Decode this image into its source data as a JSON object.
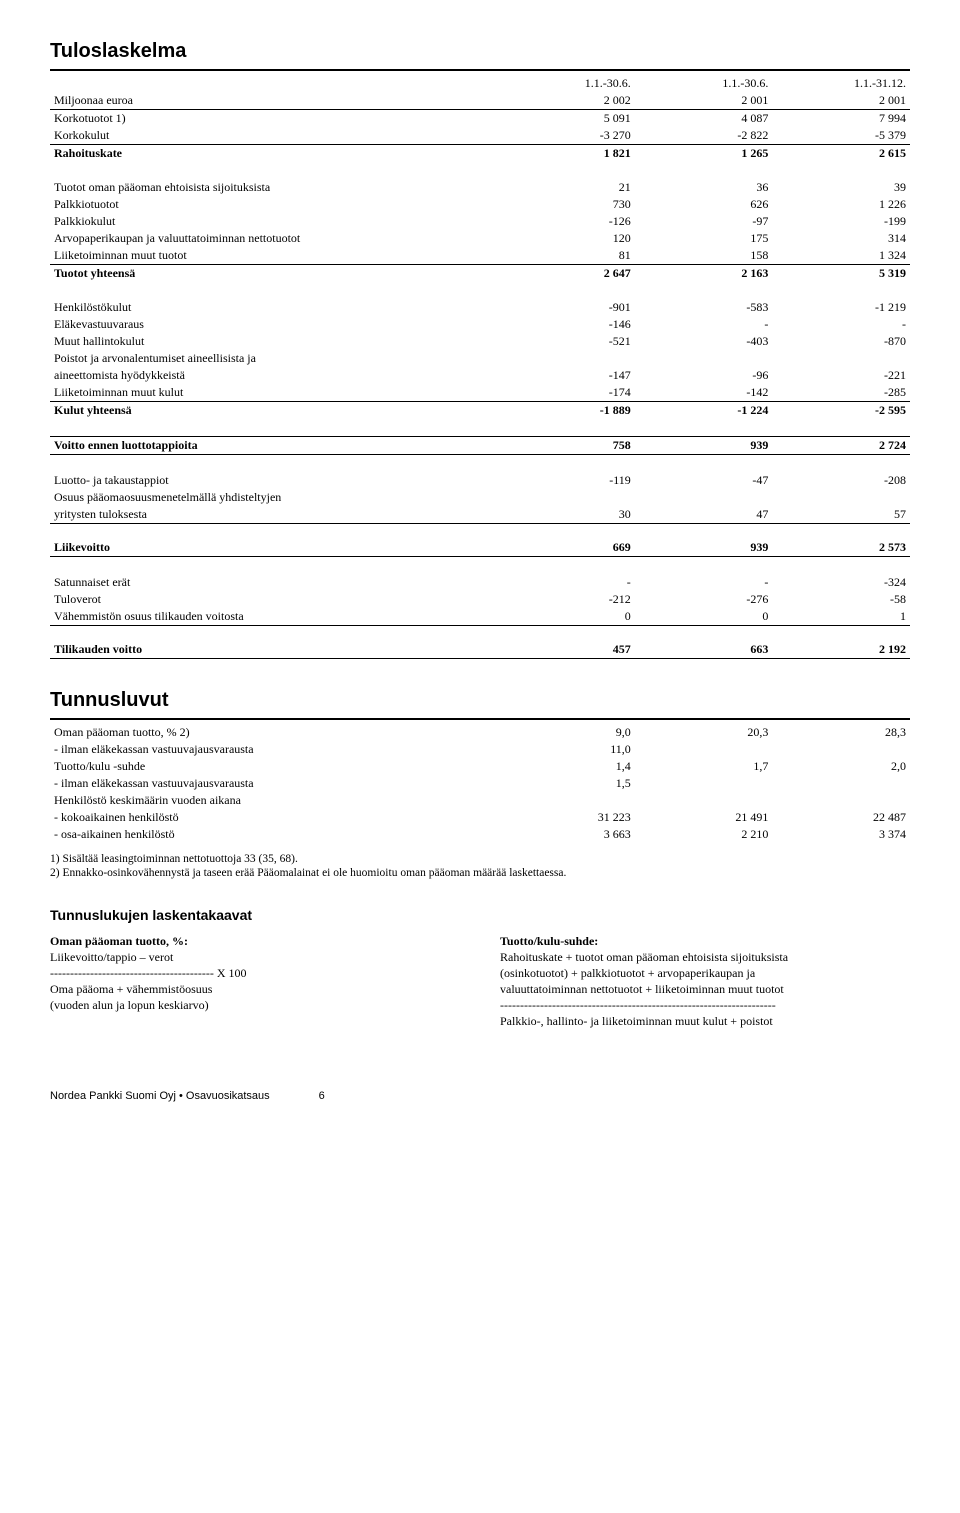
{
  "title_main": "Tuloslaskelma",
  "title_ratio": "Tunnusluvut",
  "title_formulas": "Tunnuslukujen laskentakaavat",
  "table1": {
    "periods": [
      "1.1.-30.6.",
      "1.1.-30.6.",
      "1.1.-31.12."
    ],
    "header_left": "Miljoonaa euroa",
    "years": [
      "2 002",
      "2 001",
      "2 001"
    ],
    "rows": [
      {
        "label": "Korkotuotot 1)",
        "v": [
          "5 091",
          "4 087",
          "7 994"
        ]
      },
      {
        "label": "Korkokulut",
        "v": [
          "-3 270",
          "-2 822",
          "-5 379"
        ]
      },
      {
        "label": "Rahoituskate",
        "v": [
          "1 821",
          "1 265",
          "2 615"
        ],
        "bold": true,
        "thin_top": true
      },
      {
        "spacer": true
      },
      {
        "label": "Tuotot oman pääoman ehtoisista sijoituksista",
        "v": [
          "21",
          "36",
          "39"
        ]
      },
      {
        "label": "Palkkiotuotot",
        "v": [
          "730",
          "626",
          "1 226"
        ]
      },
      {
        "label": "Palkkiokulut",
        "v": [
          "-126",
          "-97",
          "-199"
        ]
      },
      {
        "label": "Arvopaperikaupan ja valuuttatoiminnan nettotuotot",
        "v": [
          "120",
          "175",
          "314"
        ]
      },
      {
        "label": "Liiketoiminnan muut tuotot",
        "v": [
          "81",
          "158",
          "1 324"
        ]
      },
      {
        "label": "Tuotot yhteensä",
        "v": [
          "2 647",
          "2 163",
          "5 319"
        ],
        "bold": true,
        "thin_top": true
      },
      {
        "spacer": true
      },
      {
        "label": "Henkilöstökulut",
        "v": [
          "-901",
          "-583",
          "-1 219"
        ]
      },
      {
        "label": "Eläkevastuuvaraus",
        "v": [
          "-146",
          "-",
          "-"
        ]
      },
      {
        "label": "Muut hallintokulut",
        "v": [
          "-521",
          "-403",
          "-870"
        ]
      },
      {
        "label": "Poistot ja arvonalentumiset aineellisista ja",
        "v": [
          "",
          "",
          ""
        ]
      },
      {
        "label": "aineettomista hyödykkeistä",
        "v": [
          "-147",
          "-96",
          "-221"
        ]
      },
      {
        "label": "Liiketoiminnan muut kulut",
        "v": [
          "-174",
          "-142",
          "-285"
        ]
      },
      {
        "label": "Kulut yhteensä",
        "v": [
          "-1 889",
          "-1 224",
          "-2 595"
        ],
        "bold": true,
        "thin_top": true
      },
      {
        "spacer": true
      },
      {
        "label": "Voitto ennen luottotappioita",
        "v": [
          "758",
          "939",
          "2 724"
        ],
        "bold": true,
        "thin_top": true,
        "thin_bottom": true
      },
      {
        "spacer": true
      },
      {
        "label": "Luotto- ja takaustappiot",
        "v": [
          "-119",
          "-47",
          "-208"
        ]
      },
      {
        "label": "Osuus pääomaosuusmenetelmällä yhdisteltyjen",
        "v": [
          "",
          "",
          ""
        ]
      },
      {
        "label": "yritysten tuloksesta",
        "v": [
          "30",
          "47",
          "57"
        ]
      },
      {
        "spacer_thin_top": true
      },
      {
        "label": "Liikevoitto",
        "v": [
          "669",
          "939",
          "2 573"
        ],
        "bold": true,
        "thin_bottom": true
      },
      {
        "spacer": true
      },
      {
        "label": "Satunnaiset erät",
        "v": [
          "-",
          "-",
          "-324"
        ]
      },
      {
        "label": "Tuloverot",
        "v": [
          "-212",
          "-276",
          "-58"
        ]
      },
      {
        "label": "Vähemmistön osuus tilikauden voitosta",
        "v": [
          "0",
          "0",
          "1"
        ]
      },
      {
        "spacer_thin_top": true
      },
      {
        "label": "Tilikauden voitto",
        "v": [
          "457",
          "663",
          "2 192"
        ],
        "bold": true,
        "thin_bottom": true
      }
    ]
  },
  "table2": {
    "rows": [
      {
        "label": "Oman pääoman tuotto, % 2)",
        "v": [
          "9,0",
          "20,3",
          "28,3"
        ]
      },
      {
        "label": "- ilman eläkekassan vastuuvajausvarausta",
        "v": [
          "11,0",
          "",
          ""
        ]
      },
      {
        "label": "Tuotto/kulu -suhde",
        "v": [
          "1,4",
          "1,7",
          "2,0"
        ]
      },
      {
        "label": "- ilman eläkekassan vastuuvajausvarausta",
        "v": [
          "1,5",
          "",
          ""
        ]
      },
      {
        "label": "Henkilöstö keskimäärin vuoden aikana",
        "v": [
          "",
          "",
          ""
        ]
      },
      {
        "label": "- kokoaikainen henkilöstö",
        "v": [
          "31 223",
          "21 491",
          "22 487"
        ]
      },
      {
        "label": "- osa-aikainen henkilöstö",
        "v": [
          "3 663",
          "2 210",
          "3 374"
        ]
      }
    ]
  },
  "footnotes": {
    "fn1": "1) Sisältää leasingtoiminnan nettotuottoja 33 (35, 68).",
    "fn2": "2) Ennakko-osinkovähennystä ja taseen erää Pääomalainat ei ole huomioitu oman pääoman määrää laskettaessa."
  },
  "formulas": {
    "left_title": "Oman pääoman tuotto, %:",
    "left_lines": [
      "Liikevoitto/tappio – verot",
      "----------------------------------------- X 100",
      "Oma pääoma + vähemmistöosuus",
      "(vuoden alun ja lopun keskiarvo)"
    ],
    "right_title": "Tuotto/kulu-suhde:",
    "right_lines": [
      "Rahoituskate + tuotot oman pääoman ehtoisista sijoituksista",
      "(osinkotuotot) + palkkiotuotot + arvopaperikaupan ja",
      "valuuttatoiminnan nettotuotot + liiketoiminnan muut tuotot",
      "---------------------------------------------------------------------",
      "Palkkio-, hallinto- ja liiketoiminnan muut kulut + poistot"
    ]
  },
  "footer": "Nordea Pankki Suomi Oyj • Osavuosikatsaus",
  "footer_page": "6"
}
